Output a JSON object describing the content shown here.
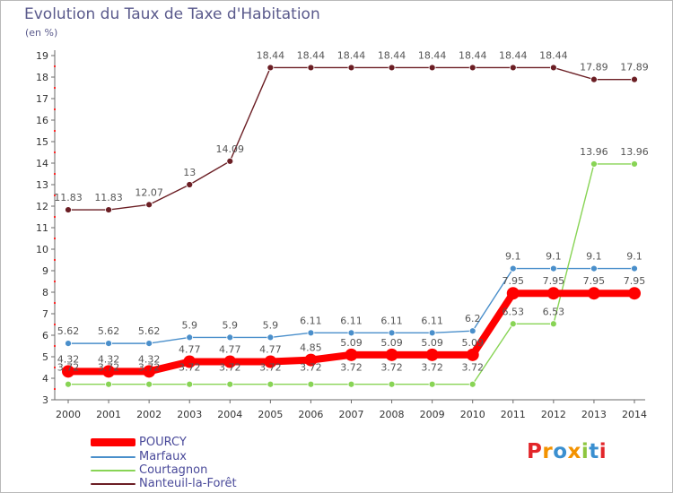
{
  "header": {
    "title": "Evolution du Taux de Taxe d'Habitation",
    "unit": "(en %)"
  },
  "chart_data": {
    "type": "line",
    "title": "Evolution du Taux de Taxe d'Habitation",
    "ylabel": "(en %)",
    "xlabel": "",
    "x": [
      "2000",
      "2001",
      "2002",
      "2003",
      "2004",
      "2005",
      "2006",
      "2007",
      "2008",
      "2009",
      "2010",
      "2011",
      "2012",
      "2013",
      "2014"
    ],
    "ylim": [
      3,
      19
    ],
    "yticks": [
      3,
      4,
      5,
      6,
      7,
      8,
      9,
      10,
      11,
      12,
      13,
      14,
      15,
      16,
      17,
      18,
      19
    ],
    "grid": false,
    "legend_position": "bottom-left",
    "series": [
      {
        "name": "POURCY",
        "color": "#ff0000",
        "values": [
          4.32,
          4.32,
          4.32,
          4.77,
          4.77,
          4.77,
          4.85,
          5.09,
          5.09,
          5.09,
          5.09,
          7.95,
          7.95,
          7.95,
          7.95
        ],
        "labels": [
          "4.32",
          "4.32",
          "4.32",
          "4.77",
          "4.77",
          "4.77",
          "4.85",
          "5.09",
          "5.09",
          "5.09",
          "5.09",
          "7.95",
          "7.95",
          "7.95",
          "7.95"
        ]
      },
      {
        "name": "Marfaux",
        "color": "#4a8fcb",
        "values": [
          5.62,
          5.62,
          5.62,
          5.9,
          5.9,
          5.9,
          6.11,
          6.11,
          6.11,
          6.11,
          6.2,
          9.1,
          9.1,
          9.1,
          9.1
        ],
        "labels": [
          "5.62",
          "5.62",
          "5.62",
          "5.9",
          "5.9",
          "5.9",
          "6.11",
          "6.11",
          "6.11",
          "6.11",
          "6.2",
          "9.1",
          "9.1",
          "9.1",
          "9.1"
        ]
      },
      {
        "name": "Courtagnon",
        "color": "#88d455",
        "values": [
          3.72,
          3.72,
          3.72,
          3.72,
          3.72,
          3.72,
          3.72,
          3.72,
          3.72,
          3.72,
          3.72,
          6.53,
          6.53,
          13.96,
          13.96
        ],
        "labels": [
          "3.72",
          "3.72",
          "3.72",
          "3.72",
          "3.72",
          "3.72",
          "3.72",
          "3.72",
          "3.72",
          "3.72",
          "3.72",
          "6.53",
          "6.53",
          "13.96",
          "13.96"
        ]
      },
      {
        "name": "Nanteuil-la-Forêt",
        "color": "#6b1e24",
        "values": [
          11.83,
          11.83,
          12.07,
          13,
          14.09,
          18.44,
          18.44,
          18.44,
          18.44,
          18.44,
          18.44,
          18.44,
          18.44,
          17.89,
          17.89
        ],
        "labels": [
          "11.83",
          "11.83",
          "12.07",
          "13",
          "14.09",
          "18.44",
          "18.44",
          "18.44",
          "18.44",
          "18.44",
          "18.44",
          "18.44",
          "18.44",
          "17.89",
          "17.89"
        ]
      }
    ]
  },
  "logo": {
    "text": "Proxiti",
    "colors": [
      "#e2262a",
      "#f39200",
      "#3a8fd0",
      "#f39200",
      "#8ec63f",
      "#3a8fd0",
      "#e2262a"
    ]
  }
}
